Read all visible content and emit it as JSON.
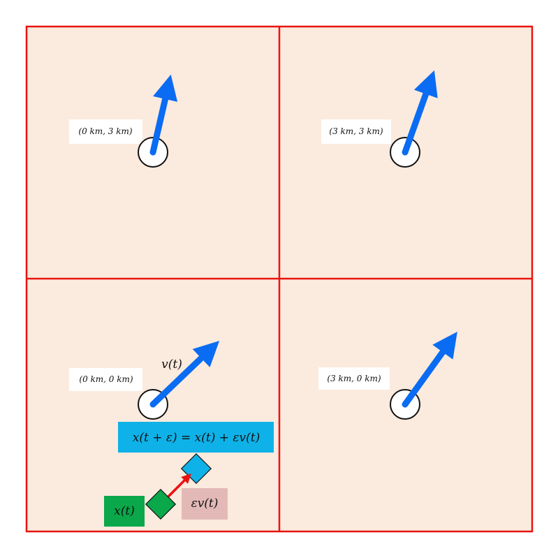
{
  "colors": {
    "background": "#ffffff",
    "cell_fill": "#fbeade",
    "grid_border": "#e8140f",
    "velocity_arrow": "#0a6cf2",
    "step_arrow": "#ee0f0f",
    "equation_box": "#0fb2e8",
    "position_box": "#0aa84a",
    "step_box": "#e3b9b7",
    "label_box": "#ffffff"
  },
  "grid": {
    "cells": [
      {
        "id": "top-left",
        "coord_label": "(0 km, 3 km)",
        "velocity": [
          0.6,
          2.6
        ]
      },
      {
        "id": "top-right",
        "coord_label": "(3 km, 3 km)",
        "velocity": [
          1.0,
          2.8
        ]
      },
      {
        "id": "bottom-left",
        "coord_label": "(0 km, 0 km)",
        "velocity": [
          2.3,
          2.2
        ]
      },
      {
        "id": "bottom-right",
        "coord_label": "(3 km, 0 km)",
        "velocity": [
          1.8,
          2.5
        ]
      }
    ]
  },
  "annotations": {
    "velocity_label": "v(t)",
    "equation": "x(t + ε) = x(t) + εv(t)",
    "position_label": "x(t)",
    "step_label": "εv(t)"
  }
}
